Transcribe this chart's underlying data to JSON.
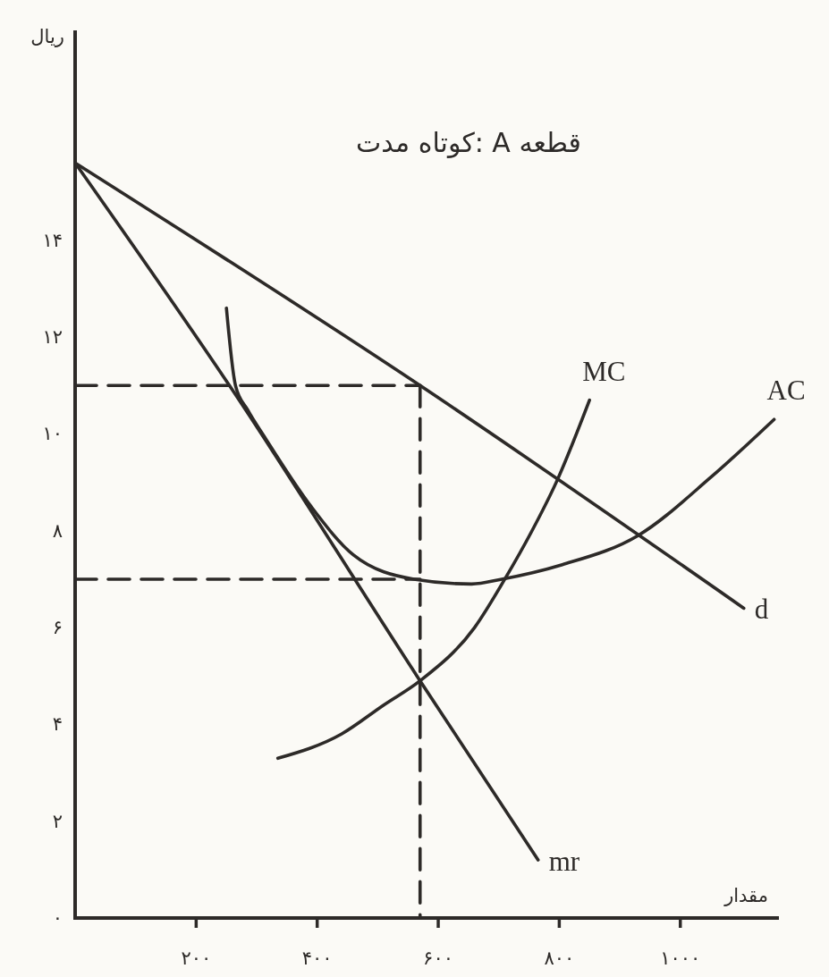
{
  "chart_data": {
    "type": "line",
    "title": "قطعه A :کوتاه مدت",
    "xlabel": "مقدار",
    "ylabel": "ریال",
    "xlim": [
      0,
      1160
    ],
    "ylim": [
      0,
      18.3
    ],
    "xticks": [
      {
        "value": 200,
        "label": "۲۰۰"
      },
      {
        "value": 400,
        "label": "۴۰۰"
      },
      {
        "value": 600,
        "label": "۶۰۰"
      },
      {
        "value": 800,
        "label": "۸۰۰"
      },
      {
        "value": 1000,
        "label": "۱۰۰۰"
      }
    ],
    "yticks": [
      {
        "value": 0,
        "label": "۰"
      },
      {
        "value": 2,
        "label": "۲"
      },
      {
        "value": 4,
        "label": "۴"
      },
      {
        "value": 6,
        "label": "۶"
      },
      {
        "value": 8,
        "label": "۸"
      },
      {
        "value": 10,
        "label": "۱۰"
      },
      {
        "value": 12,
        "label": "۱۲"
      },
      {
        "value": 14,
        "label": "۱۴"
      }
    ],
    "line_style": "solid",
    "series": [
      {
        "name": "d",
        "color": "#2d2a28",
        "x": [
          0,
          570,
          1105
        ],
        "values": [
          15.6,
          11.0,
          6.4
        ]
      },
      {
        "name": "mr",
        "color": "#2d2a28",
        "x": [
          0,
          255,
          570,
          765
        ],
        "values": [
          15.6,
          11.0,
          4.9,
          1.2
        ]
      },
      {
        "name": "MC",
        "color": "#2d2a28",
        "x": [
          335,
          440,
          510,
          570,
          660,
          710,
          755,
          795,
          850
        ],
        "values": [
          3.3,
          3.8,
          4.4,
          4.9,
          6.0,
          7.0,
          8.0,
          9.0,
          10.7
        ]
      },
      {
        "name": "AC",
        "color": "#2d2a28",
        "x": [
          250,
          265,
          285,
          315,
          390,
          460,
          560,
          655,
          705,
          805,
          930,
          1050,
          1155
        ],
        "values": [
          12.6,
          11.0,
          10.5,
          9.9,
          8.5,
          7.5,
          7.0,
          6.9,
          7.0,
          7.3,
          7.9,
          9.1,
          10.3
        ]
      },
      {
        "color": "#2d2a28",
        "line_style": "dashed",
        "x": [
          0,
          570
        ],
        "values": [
          11,
          11
        ]
      },
      {
        "color": "#2d2a28",
        "line_style": "dashed",
        "x": [
          0,
          570
        ],
        "values": [
          7,
          7
        ]
      },
      {
        "color": "#2d2a28",
        "line_style": "dashed",
        "x": [
          570,
          570
        ],
        "values": [
          11,
          0
        ]
      }
    ]
  }
}
